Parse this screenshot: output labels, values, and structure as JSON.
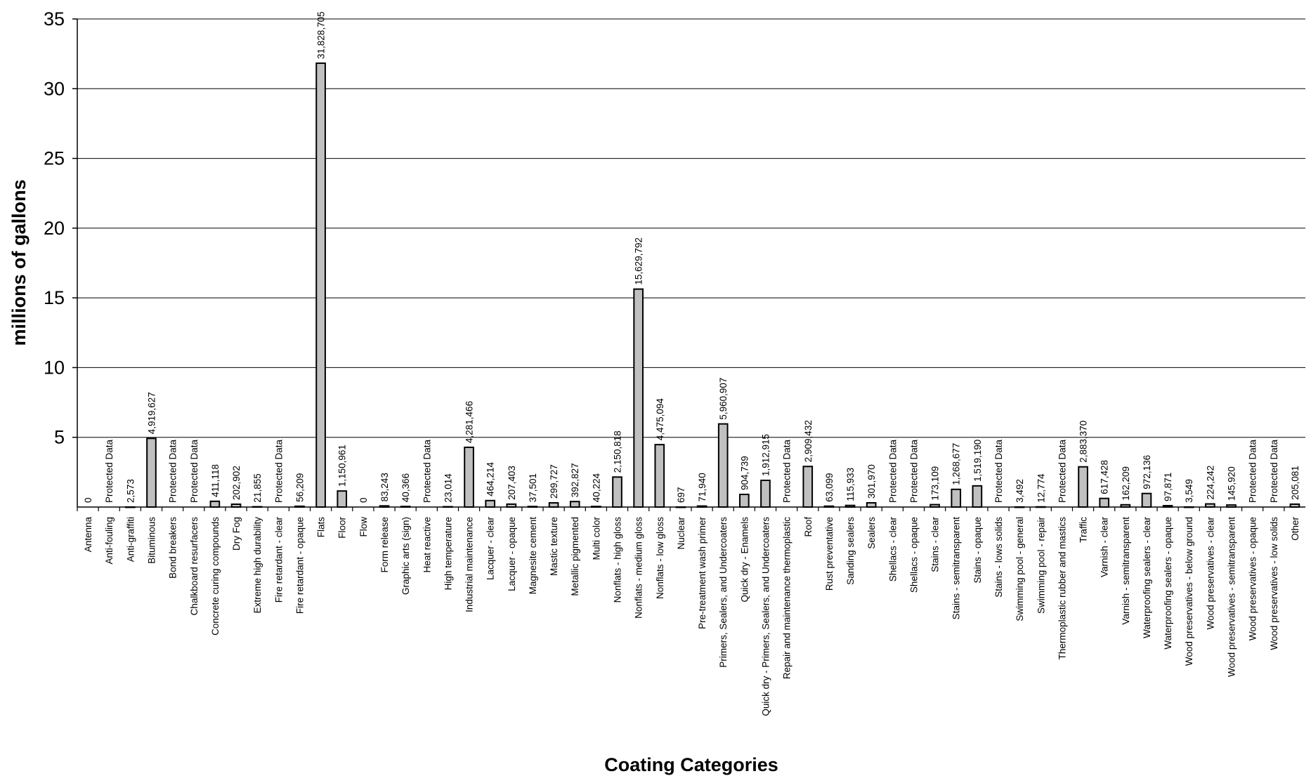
{
  "chart_data": {
    "type": "bar",
    "xlabel": "Coating Categories",
    "ylabel": "millions of gallons",
    "ylim": [
      0,
      35
    ],
    "yticks": [
      5,
      10,
      15,
      20,
      25,
      30,
      35
    ],
    "grid": true,
    "bar_color": "#c0c0c0",
    "categories": [
      "Antenna",
      "Anti-fouling",
      "Anti-graffiti",
      "Bituminous",
      "Bond breakers",
      "Chalkboard resurfacers",
      "Concrete curing compounds",
      "Dry Fog",
      "Extreme high durability",
      "Fire retardant - clear",
      "Fire retardant - opaque",
      "Flats",
      "Floor",
      "Flow",
      "Form release",
      "Graphic arts (sign)",
      "Heat reactive",
      "High temperature",
      "Industrial maintenance",
      "Lacquer - clear",
      "Lacquer - opaque",
      "Magnesite cement",
      "Mastic texture",
      "Metallic pigmented",
      "Multi color",
      "Nonflats - high gloss",
      "Nonflats - medium gloss",
      "Nonflats - low gloss",
      "Nuclear",
      "Pre-treatment wash primer",
      "Primers, Sealers, and Undercoaters",
      "Quick dry - Enamels",
      "Quick dry - Primers, Sealers, and Undercoaters",
      "Repair and maintenance thermoplastic",
      "Roof",
      "Rust preventative",
      "Sanding sealers",
      "Sealers",
      "Shellacs - clear",
      "Shellacs - opaque",
      "Stains - clear",
      "Stains - semitransparent",
      "Stains - opaque",
      "Stains - lows solids",
      "Swimming pool - general",
      "Swimming pool - repair",
      "Thermoplastic rubber and mastics",
      "Traffic",
      "Varnish - clear",
      "Varnish - semitransparent",
      "Waterproofing sealers - clear",
      "Waterproofing sealers - opaque",
      "Wood preservatives - below ground",
      "Wood preservatives - clear",
      "Wood preservatives - semitransparent",
      "Wood preservatives - opaque",
      "Wood preservatives - low solids",
      "Other"
    ],
    "values": [
      0,
      null,
      2573,
      4919627,
      null,
      null,
      411118,
      202902,
      21855,
      null,
      56209,
      31828705,
      1150961,
      0,
      83243,
      40366,
      null,
      23014,
      4281466,
      464214,
      207403,
      37501,
      299727,
      392827,
      40224,
      2150818,
      15629792,
      4475094,
      697,
      71940,
      5960907,
      904739,
      1912915,
      null,
      2909432,
      63099,
      115933,
      301970,
      null,
      null,
      173109,
      1268677,
      1519190,
      null,
      3492,
      12774,
      null,
      2883370,
      617428,
      162209,
      972136,
      97871,
      3549,
      224242,
      145920,
      null,
      null,
      205081
    ],
    "labels": [
      "0",
      "Protected Data",
      "2,573",
      "4,919,627",
      "Protected Data",
      "Protected Data",
      "411,118",
      "202,902",
      "21,855",
      "Protected Data",
      "56,209",
      "31,828,705",
      "1,150,961",
      "0",
      "83,243",
      "40,366",
      "Protected Data",
      "23,014",
      "4,281,466",
      "464,214",
      "207,403",
      "37,501",
      "299,727",
      "392,827",
      "40,224",
      "2,150,818",
      "15,629,792",
      "4,475,094",
      "697",
      "71,940",
      "5,960,907",
      "904,739",
      "1,912,915",
      "Protected Data",
      "2,909,432",
      "63,099",
      "115,933",
      "301,970",
      "Protected Data",
      "Protected Data",
      "173,109",
      "1,268,677",
      "1,519,190",
      "Protected Data",
      "3,492",
      "12,774",
      "Protected Data",
      "2,883,370",
      "617,428",
      "162,209",
      "972,136",
      "97,871",
      "3,549",
      "224,242",
      "145,920",
      "Protected Data",
      "Protected Data",
      "205,081"
    ]
  }
}
